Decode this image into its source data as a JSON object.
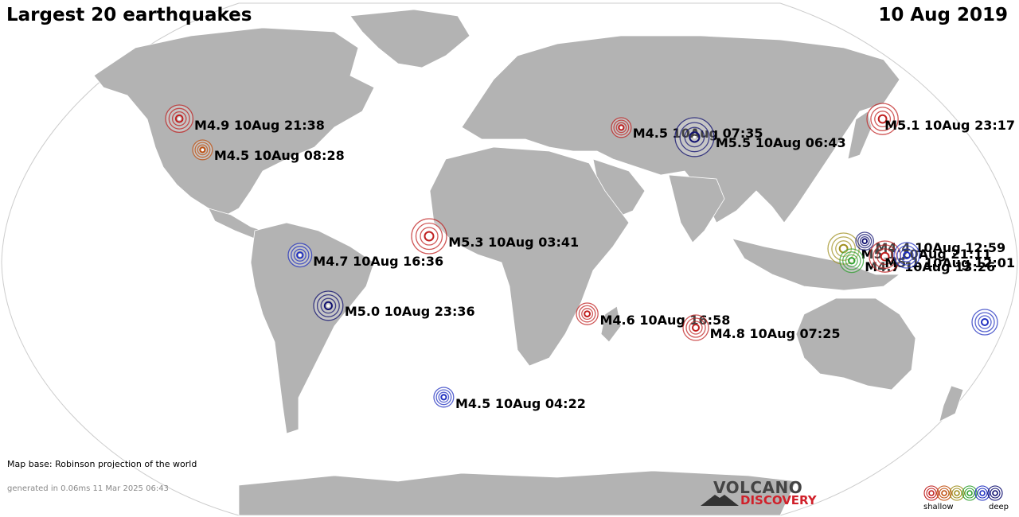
{
  "header": {
    "title": "Largest 20 earthquakes",
    "date": "10 Aug 2019"
  },
  "footer": {
    "map_base": "Map base: Robinson projection of the world",
    "generated": "generated in 0.06ms 11 Mar 2025 06:43"
  },
  "logo": {
    "line1": "VOLCANO",
    "line2": "DISCOVERY"
  },
  "legend": {
    "shallow": "shallow",
    "deep": "deep",
    "colors": [
      "#c02020",
      "#c05010",
      "#a09020",
      "#30a030",
      "#2030c0",
      "#101070"
    ]
  },
  "colors": {
    "land": "#b3b3b3",
    "ocean": "#ffffff",
    "border": "#ffffff"
  },
  "earthquakes": [
    {
      "label": "M4.9 10Aug 21:38",
      "mag": 4.9,
      "color": "#c02020",
      "lon": -128.5,
      "lat": 43.0
    },
    {
      "label": "M4.5 10Aug 08:28",
      "mag": 4.5,
      "color": "#c05010",
      "lon": -115.5,
      "lat": 32.0
    },
    {
      "label": "M4.5 10Aug 07:35",
      "mag": 4.5,
      "color": "#c02020",
      "lon": 43.0,
      "lat": 40.0
    },
    {
      "label": "M5.5 10Aug 06:43",
      "mag": 5.5,
      "color": "#101070",
      "lon": 70.5,
      "lat": 36.5
    },
    {
      "label": "M5.1 10Aug 23:17",
      "mag": 5.1,
      "color": "#c02020",
      "lon": 145.0,
      "lat": 43.0
    },
    {
      "label": "M5.3 10Aug 03:41",
      "mag": 5.3,
      "color": "#c02020",
      "lon": -29.0,
      "lat": 1.0
    },
    {
      "label": "M4.7 10Aug 16:36",
      "mag": 4.7,
      "color": "#2030c0",
      "lon": -76.0,
      "lat": -6.0
    },
    {
      "label": "M5.0 10Aug 23:36",
      "mag": 5.0,
      "color": "#101070",
      "lon": -67.0,
      "lat": -24.0
    },
    {
      "label": "M4.6 10Aug 16:58",
      "mag": 4.6,
      "color": "#c02020",
      "lon": 29.0,
      "lat": -27.0
    },
    {
      "label": "M4.8 10Aug 07:25",
      "mag": 4.8,
      "color": "#c02020",
      "lon": 70.0,
      "lat": -32.0
    },
    {
      "label": "M5.1 10Aug 21:11",
      "mag": 5.1,
      "color": "#a09020",
      "lon": 121.0,
      "lat": -3.5
    },
    {
      "label": "M4.4 10Aug 12:59",
      "mag": 4.4,
      "color": "#101070",
      "lon": 128.5,
      "lat": -1.0
    },
    {
      "label": "M4.7 10Aug 13:26",
      "mag": 4.7,
      "color": "#30a030",
      "lon": 124.0,
      "lat": -8.0
    },
    {
      "label": "M5.1 10Aug 12:01",
      "mag": 5.1,
      "color": "#c02020",
      "lon": 136.0,
      "lat": -6.5
    },
    {
      "label": "",
      "mag": 4.8,
      "color": "#2030c0",
      "lon": 144.0,
      "lat": -6.0
    },
    {
      "label": "",
      "mag": 4.8,
      "color": "#2030c0",
      "lon": 178.0,
      "lat": -30.0
    },
    {
      "label": "M4.5 10Aug 04:22",
      "mag": 4.5,
      "color": "#2030c0",
      "lon": -27.0,
      "lat": -57.0
    }
  ]
}
